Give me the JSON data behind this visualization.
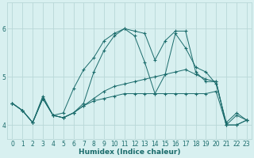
{
  "xlabel": "Humidex (Indice chaleur)",
  "ylabel": "",
  "bg_color": "#d8f0f0",
  "grid_color": "#b8d8d8",
  "line_color": "#1a6b6b",
  "marker": "+",
  "marker_size": 3,
  "xlim": [
    -0.5,
    23.5
  ],
  "ylim": [
    3.7,
    6.55
  ],
  "yticks": [
    4,
    5,
    6
  ],
  "xticks": [
    0,
    1,
    2,
    3,
    4,
    5,
    6,
    7,
    8,
    9,
    10,
    11,
    12,
    13,
    14,
    15,
    16,
    17,
    18,
    19,
    20,
    21,
    22,
    23
  ],
  "series": [
    [
      4.45,
      4.3,
      4.05,
      4.55,
      4.2,
      4.15,
      4.25,
      4.4,
      4.55,
      4.7,
      4.8,
      4.85,
      4.9,
      4.95,
      5.0,
      5.05,
      5.1,
      5.15,
      5.05,
      4.95,
      4.9,
      4.0,
      4.0,
      4.1
    ],
    [
      4.45,
      4.3,
      4.05,
      4.55,
      4.2,
      4.15,
      4.25,
      4.4,
      4.5,
      4.55,
      4.6,
      4.65,
      4.65,
      4.65,
      4.65,
      4.65,
      4.65,
      4.65,
      4.65,
      4.65,
      4.7,
      4.0,
      4.0,
      4.1
    ],
    [
      4.45,
      4.3,
      4.05,
      4.6,
      4.2,
      4.25,
      4.75,
      5.15,
      5.4,
      5.75,
      5.9,
      6.0,
      5.85,
      5.3,
      4.65,
      5.05,
      5.9,
      5.6,
      5.2,
      5.1,
      4.85,
      4.05,
      4.25,
      4.1
    ],
    [
      4.45,
      4.3,
      4.05,
      4.55,
      4.2,
      4.15,
      4.25,
      4.45,
      5.1,
      5.55,
      5.85,
      6.0,
      5.95,
      5.9,
      5.35,
      5.75,
      5.95,
      5.95,
      5.1,
      4.9,
      4.9,
      4.0,
      4.2,
      4.1
    ]
  ]
}
